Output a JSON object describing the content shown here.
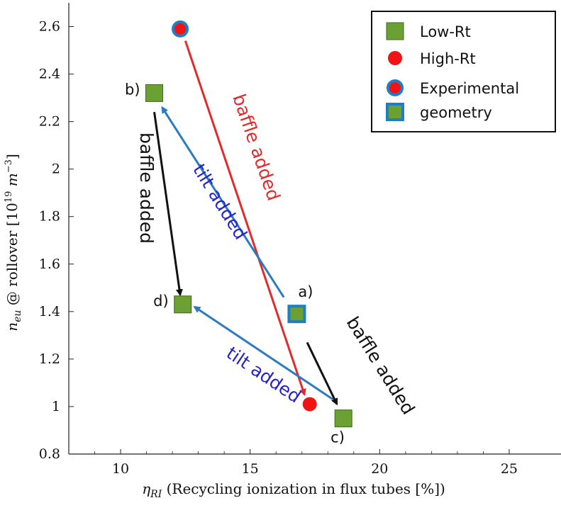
{
  "chart_data": {
    "type": "scatter",
    "x_axis": {
      "label_symbol": "η",
      "label_sub": "RI",
      "label_text": "(Recycling ionization in flux tubes [%])",
      "range": [
        8,
        27
      ],
      "ticks": [
        10,
        15,
        20,
        25
      ],
      "tick_labels": [
        "10",
        "15",
        "20",
        "25"
      ]
    },
    "y_axis": {
      "label_symbol": "n",
      "label_sub": "eu",
      "label_text": "@ rollover [10",
      "label_exp": "19",
      "label_unit": "m",
      "label_unit_exp": "−3",
      "label_close": "]",
      "range": [
        0.8,
        2.7
      ],
      "ticks": [
        0.8,
        1,
        1.2,
        1.4,
        1.6,
        1.8,
        2,
        2.2,
        2.4,
        2.6
      ],
      "tick_labels": [
        "0.8",
        "1",
        "1.2",
        "1.4",
        "1.6",
        "1.8",
        "2",
        "2.2",
        "2.4",
        "2.6"
      ]
    },
    "points": [
      {
        "id": "a",
        "label": "a)",
        "x": 16.8,
        "y": 1.39,
        "kind": "experimental-low",
        "label_pos": "above-right"
      },
      {
        "id": "b",
        "label": "b)",
        "x": 11.3,
        "y": 2.32,
        "kind": "low",
        "label_pos": "left"
      },
      {
        "id": "c",
        "label": "c)",
        "x": 18.6,
        "y": 0.95,
        "kind": "low",
        "label_pos": "below-left"
      },
      {
        "id": "d",
        "label": "d)",
        "x": 12.4,
        "y": 1.43,
        "kind": "low",
        "label_pos": "left"
      },
      {
        "id": "e",
        "label": "",
        "x": 12.3,
        "y": 2.59,
        "kind": "experimental-high",
        "label_pos": "none"
      },
      {
        "id": "f",
        "label": "",
        "x": 17.3,
        "y": 1.01,
        "kind": "high",
        "label_pos": "none"
      }
    ],
    "arrows": [
      {
        "from": [
          12.5,
          2.54
        ],
        "to": [
          17.1,
          1.05
        ],
        "color": "#e32a2a"
      },
      {
        "from": [
          16.3,
          1.46
        ],
        "to": [
          11.6,
          2.26
        ],
        "color": "#2a7bbf"
      },
      {
        "from": [
          18.2,
          1.03
        ],
        "to": [
          12.85,
          1.42
        ],
        "color": "#2a7bbf"
      },
      {
        "from": [
          11.3,
          2.24
        ],
        "to": [
          12.3,
          1.47
        ],
        "color": "#111111"
      },
      {
        "from": [
          17.2,
          1.27
        ],
        "to": [
          18.35,
          1.01
        ],
        "color": "#111111"
      }
    ],
    "annotations": [
      {
        "text": "baffle added",
        "color": "#e32a2a",
        "x": 15.2,
        "y": 2.09,
        "angle": 71
      },
      {
        "text": "tilt added",
        "color": "#2525c8",
        "x": 13.8,
        "y": 1.86,
        "angle": 58
      },
      {
        "text": "baffle added",
        "color": "#111111",
        "x": 10.95,
        "y": 1.92,
        "angle": 90
      },
      {
        "text": "tilt added",
        "color": "#2525c8",
        "x": 15.5,
        "y": 1.13,
        "angle": 34
      },
      {
        "text": "baffle added",
        "color": "#111111",
        "x": 20.0,
        "y": 1.17,
        "angle": 58
      }
    ],
    "legend": {
      "position": "top-right",
      "entries": [
        {
          "label": "Low-Rt",
          "marker": "square-green"
        },
        {
          "label": "High-Rt",
          "marker": "circle-red"
        },
        {
          "label": "Experimental",
          "marker": "circle-blue-outline"
        },
        {
          "label": "geometry",
          "marker": "square-blue-outline"
        }
      ]
    },
    "colors": {
      "low_fill": "#6aa132",
      "high_fill": "#f21414",
      "experimental_outline": "#1f7ec4"
    }
  }
}
